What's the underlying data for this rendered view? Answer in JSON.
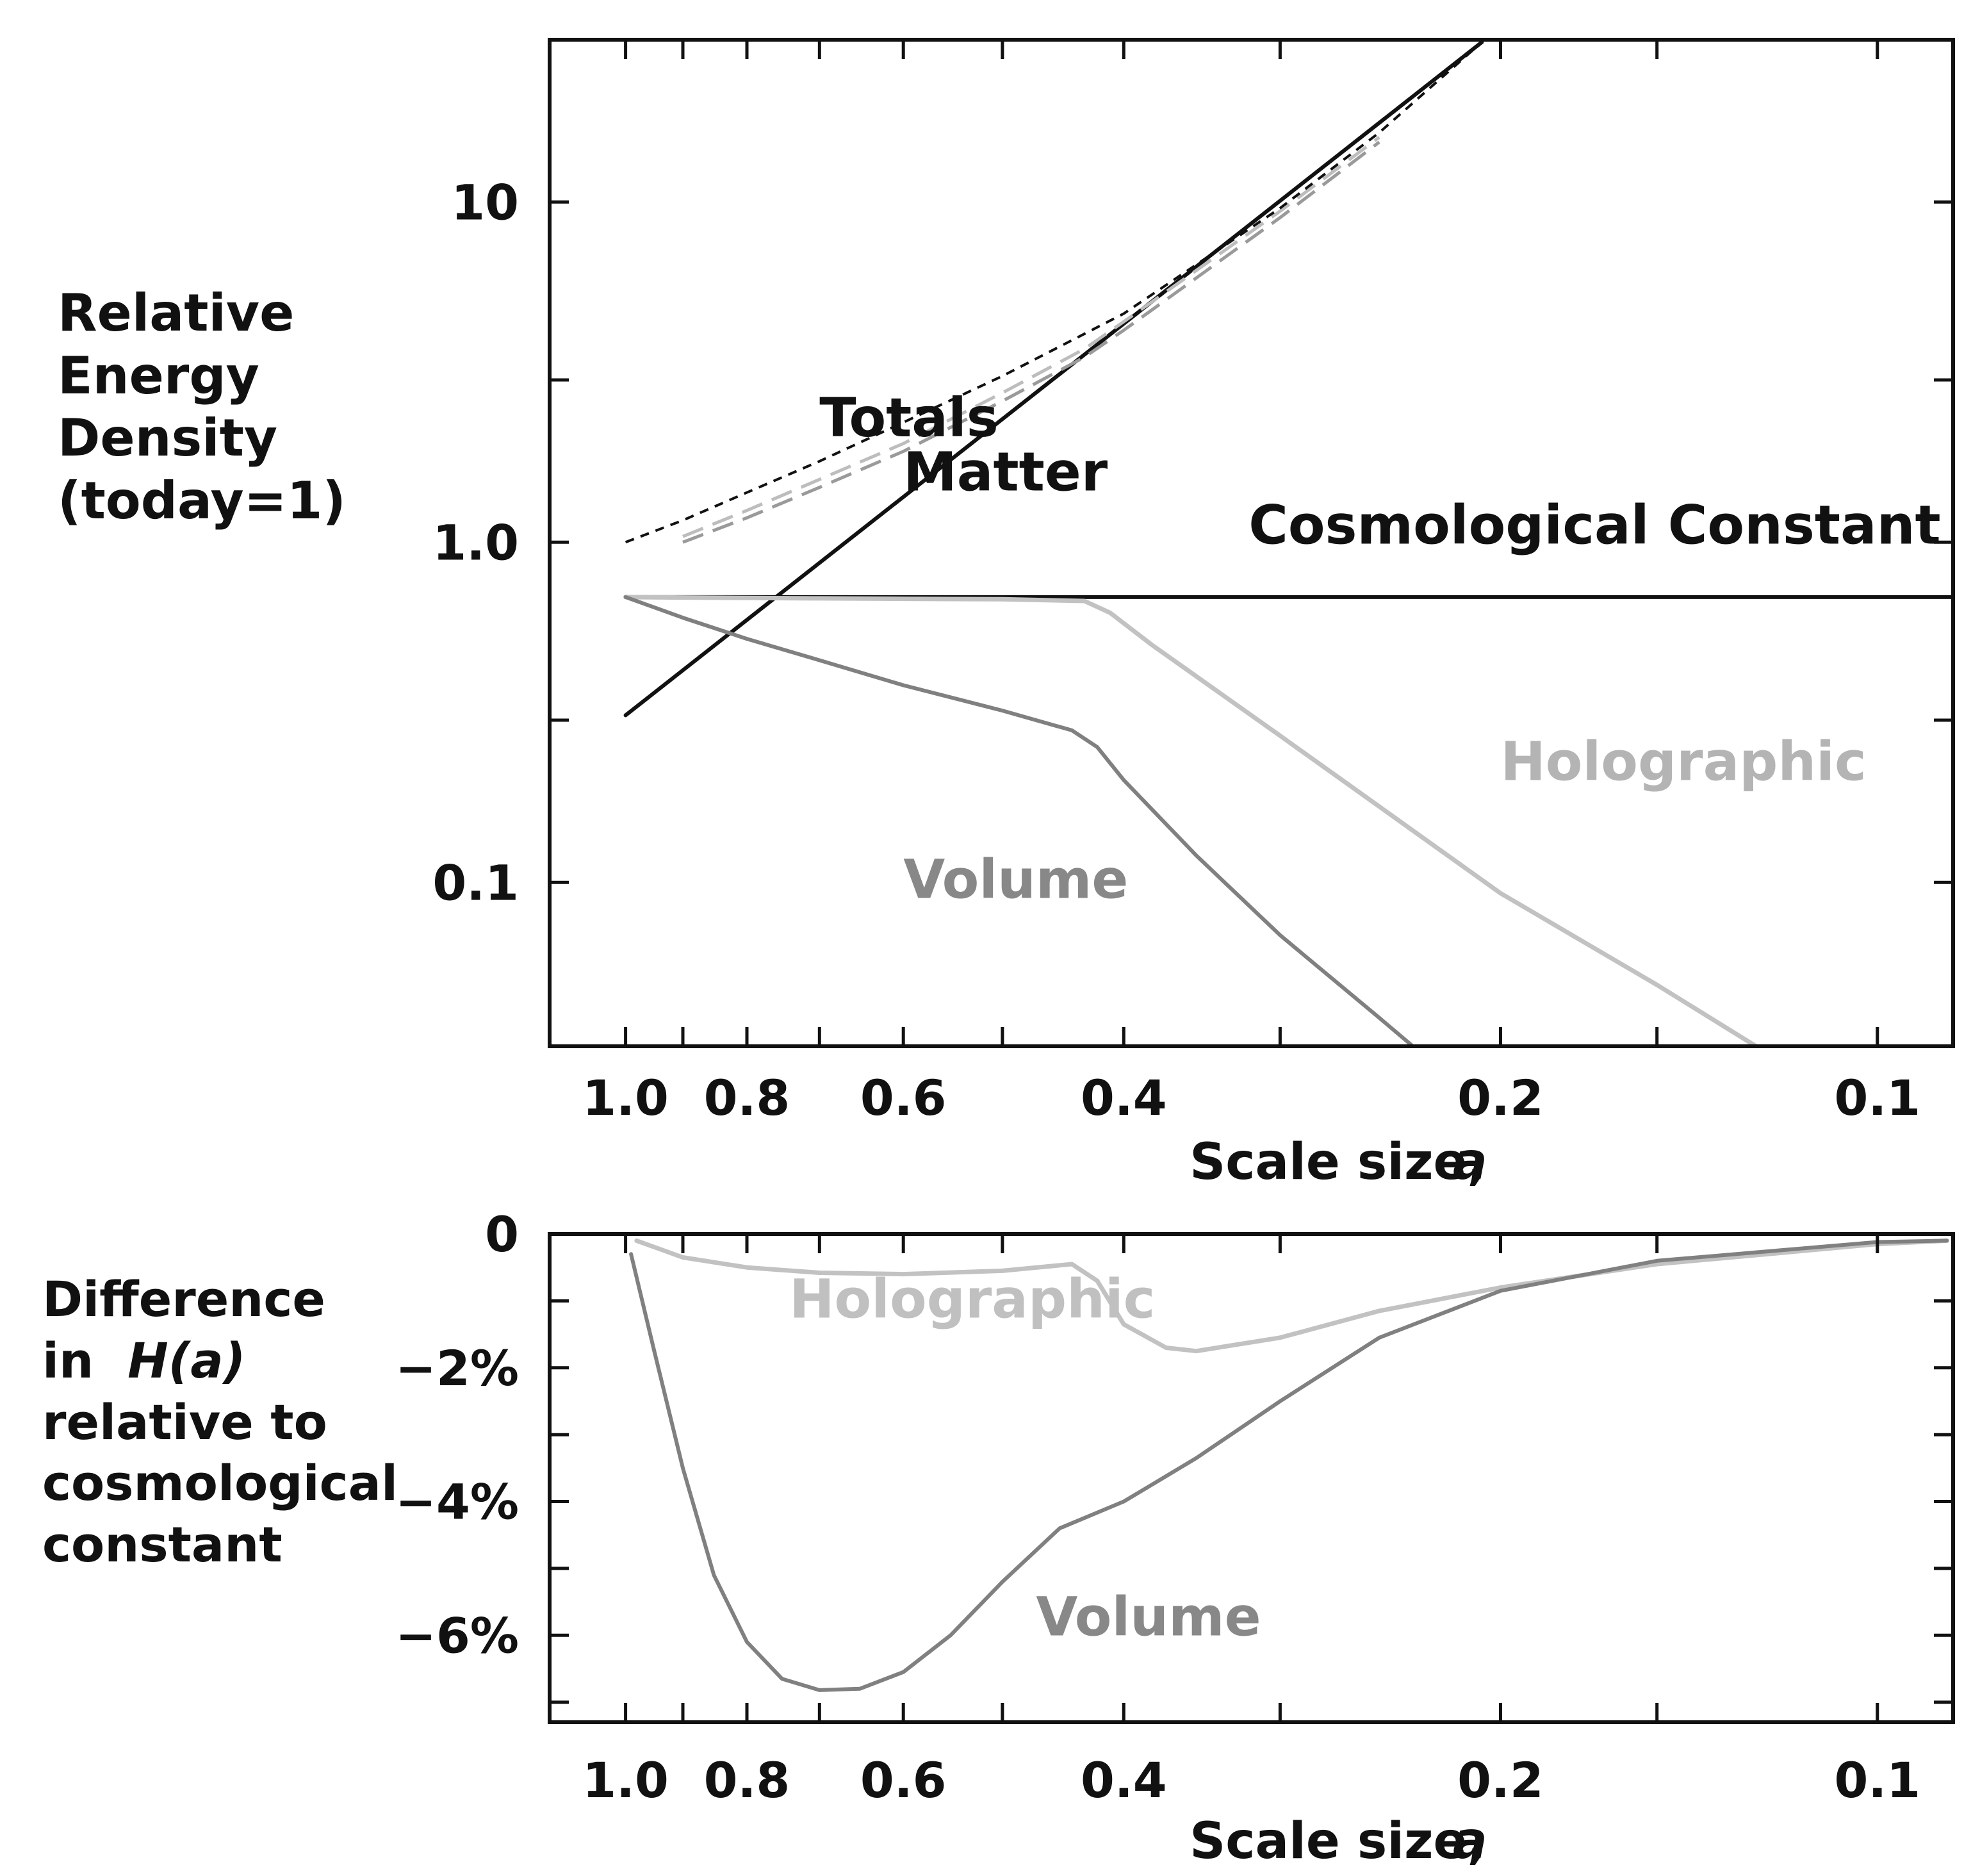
{
  "colors": {
    "axis": "#111111",
    "cosmological": "#111111",
    "matter": "#111111",
    "holographic": "#c2c2c2",
    "volume": "#808080",
    "totals_dashed": "#111111",
    "totals_gray": "#a8a8a8"
  },
  "top_ylabel": {
    "lines": [
      "Relative",
      "Energy",
      "Density",
      "(today=1)"
    ]
  },
  "bottom_ylabel": {
    "line1": "Difference",
    "line2_prefix": "in",
    "line2_func": "H(a)",
    "line3": "relative to",
    "line4": "cosmological",
    "line5": "constant"
  },
  "chart_data": [
    {
      "type": "line",
      "panel": "top",
      "xscale": "log",
      "xreversed": true,
      "xlim": [
        1.15,
        0.087
      ],
      "yscale": "log",
      "ylim": [
        0.033,
        30
      ],
      "xlabel": "Scale size,",
      "xlabel_var": "a",
      "ylabel": "Relative Energy Density (today=1)",
      "xtick_labels": [
        {
          "value": 1.0,
          "label": "1.0"
        },
        {
          "value": 0.8,
          "label": "0.8"
        },
        {
          "value": 0.6,
          "label": "0.6"
        },
        {
          "value": 0.4,
          "label": "0.4"
        },
        {
          "value": 0.2,
          "label": "0.2"
        },
        {
          "value": 0.1,
          "label": "0.1"
        }
      ],
      "xtick_minor": [
        0.9,
        0.7,
        0.5,
        0.3,
        0.15
      ],
      "ytick_labels": [
        {
          "value": 10,
          "label": "10"
        },
        {
          "value": 1.0,
          "label": "1.0"
        },
        {
          "value": 0.1,
          "label": "0.1"
        }
      ],
      "ytick_minor": [
        3,
        0.3
      ],
      "series": [
        {
          "name": "Cosmological Constant",
          "color": "#111111",
          "width": 6,
          "x": [
            1.0,
            0.087
          ],
          "y": [
            0.69,
            0.69
          ],
          "label": "Cosmological Constant",
          "label_at": [
            0.089,
            0.99
          ],
          "anchor": "end",
          "label_color": "#111111"
        },
        {
          "name": "Matter",
          "color": "#111111",
          "width": 6,
          "x": [
            1.0,
            0.207
          ],
          "y": [
            0.31,
            29.5
          ],
          "label": "Matter",
          "label_at": [
            0.6,
            1.42
          ],
          "anchor": "start",
          "label_color": "#111111"
        },
        {
          "name": "Holographic",
          "color": "#c2c2c2",
          "width": 7,
          "x": [
            1.0,
            0.9,
            0.8,
            0.7,
            0.6,
            0.5,
            0.43,
            0.41,
            0.38,
            0.3,
            0.2,
            0.15,
            0.125
          ],
          "y": [
            0.69,
            0.688,
            0.686,
            0.684,
            0.682,
            0.68,
            0.672,
            0.62,
            0.5,
            0.27,
            0.093,
            0.05,
            0.033
          ],
          "label": "Holographic",
          "label_at": [
            0.2,
            0.2
          ],
          "anchor": "start",
          "label_color": "#b4b4b4"
        },
        {
          "name": "Volume",
          "color": "#808080",
          "width": 6,
          "x": [
            1.0,
            0.9,
            0.8,
            0.7,
            0.6,
            0.5,
            0.44,
            0.42,
            0.4,
            0.35,
            0.3,
            0.25,
            0.235
          ],
          "y": [
            0.69,
            0.6,
            0.52,
            0.45,
            0.38,
            0.32,
            0.28,
            0.25,
            0.2,
            0.12,
            0.07,
            0.04,
            0.033
          ],
          "label": "Volume",
          "label_at": [
            0.6,
            0.09
          ],
          "anchor": "start",
          "label_color": "#888888"
        },
        {
          "name": "Total (Volume)",
          "color": "#9a9a9a",
          "width": 5,
          "dash": "34 16",
          "x": [
            0.9,
            0.8,
            0.7,
            0.6,
            0.5,
            0.43,
            0.4,
            0.3,
            0.25
          ],
          "y": [
            1.0,
            1.18,
            1.45,
            1.85,
            2.6,
            3.5,
            4.2,
            9.0,
            15.0
          ]
        },
        {
          "name": "Total (Holographic)",
          "color": "#bdbdbd",
          "width": 5,
          "dash": "34 16",
          "x": [
            0.9,
            0.8,
            0.7,
            0.6,
            0.5,
            0.43,
            0.4,
            0.3,
            0.25
          ],
          "y": [
            1.04,
            1.24,
            1.53,
            1.95,
            2.75,
            3.7,
            4.45,
            9.4,
            15.5
          ]
        },
        {
          "name": "Totals",
          "color": "#111111",
          "width": 4,
          "dash": "14 11",
          "x": [
            1.0,
            0.9,
            0.8,
            0.7,
            0.6,
            0.5,
            0.4,
            0.3,
            0.25,
            0.207
          ],
          "y": [
            1.0,
            1.16,
            1.4,
            1.73,
            2.25,
            3.08,
            4.7,
            9.6,
            16.0,
            29.5
          ],
          "label": "Totals",
          "label_at": [
            0.7,
            2.05
          ],
          "anchor": "start",
          "label_color": "#111111"
        }
      ]
    },
    {
      "type": "line",
      "panel": "bottom",
      "xscale": "log",
      "xreversed": true,
      "xlim": [
        1.15,
        0.087
      ],
      "yscale": "linear",
      "ylim": [
        -7.3,
        0
      ],
      "xlabel": "Scale size,",
      "xlabel_var": "a",
      "ylabel": "Difference in H(a) relative to cosmological constant",
      "xtick_labels": [
        {
          "value": 1.0,
          "label": "1.0"
        },
        {
          "value": 0.8,
          "label": "0.8"
        },
        {
          "value": 0.6,
          "label": "0.6"
        },
        {
          "value": 0.4,
          "label": "0.4"
        },
        {
          "value": 0.2,
          "label": "0.2"
        },
        {
          "value": 0.1,
          "label": "0.1"
        }
      ],
      "xtick_minor": [
        0.9,
        0.7,
        0.5,
        0.3,
        0.15
      ],
      "ytick_labels": [
        {
          "value": 0,
          "label": "0"
        },
        {
          "value": -2,
          "label": "−2%"
        },
        {
          "value": -4,
          "label": "−4%"
        },
        {
          "value": -6,
          "label": "−6%"
        }
      ],
      "ytick_minor": [
        -1,
        -3,
        -5,
        -7
      ],
      "series": [
        {
          "name": "Holographic",
          "color": "#c2c2c2",
          "width": 7,
          "x": [
            0.98,
            0.9,
            0.8,
            0.7,
            0.6,
            0.5,
            0.44,
            0.42,
            0.4,
            0.37,
            0.35,
            0.3,
            0.25,
            0.2,
            0.15,
            0.1,
            0.088
          ],
          "y": [
            -0.1,
            -0.35,
            -0.5,
            -0.58,
            -0.6,
            -0.55,
            -0.45,
            -0.7,
            -1.35,
            -1.7,
            -1.75,
            -1.55,
            -1.15,
            -0.8,
            -0.45,
            -0.15,
            -0.1
          ],
          "label": "Holographic",
          "label_at": [
            0.74,
            -1.25
          ],
          "anchor": "start",
          "label_color": "#c0c0c0"
        },
        {
          "name": "Volume",
          "color": "#808080",
          "width": 6,
          "x": [
            0.99,
            0.95,
            0.9,
            0.85,
            0.8,
            0.75,
            0.7,
            0.65,
            0.6,
            0.55,
            0.5,
            0.45,
            0.4,
            0.35,
            0.3,
            0.25,
            0.2,
            0.15,
            0.1,
            0.088
          ],
          "y": [
            -0.3,
            -1.7,
            -3.5,
            -5.1,
            -6.1,
            -6.65,
            -6.82,
            -6.8,
            -6.55,
            -6.0,
            -5.2,
            -4.4,
            -4.0,
            -3.35,
            -2.5,
            -1.55,
            -0.85,
            -0.4,
            -0.12,
            -0.1
          ],
          "label": "Volume",
          "label_at": [
            0.47,
            -6.0
          ],
          "anchor": "start",
          "label_color": "#888888"
        }
      ]
    }
  ]
}
